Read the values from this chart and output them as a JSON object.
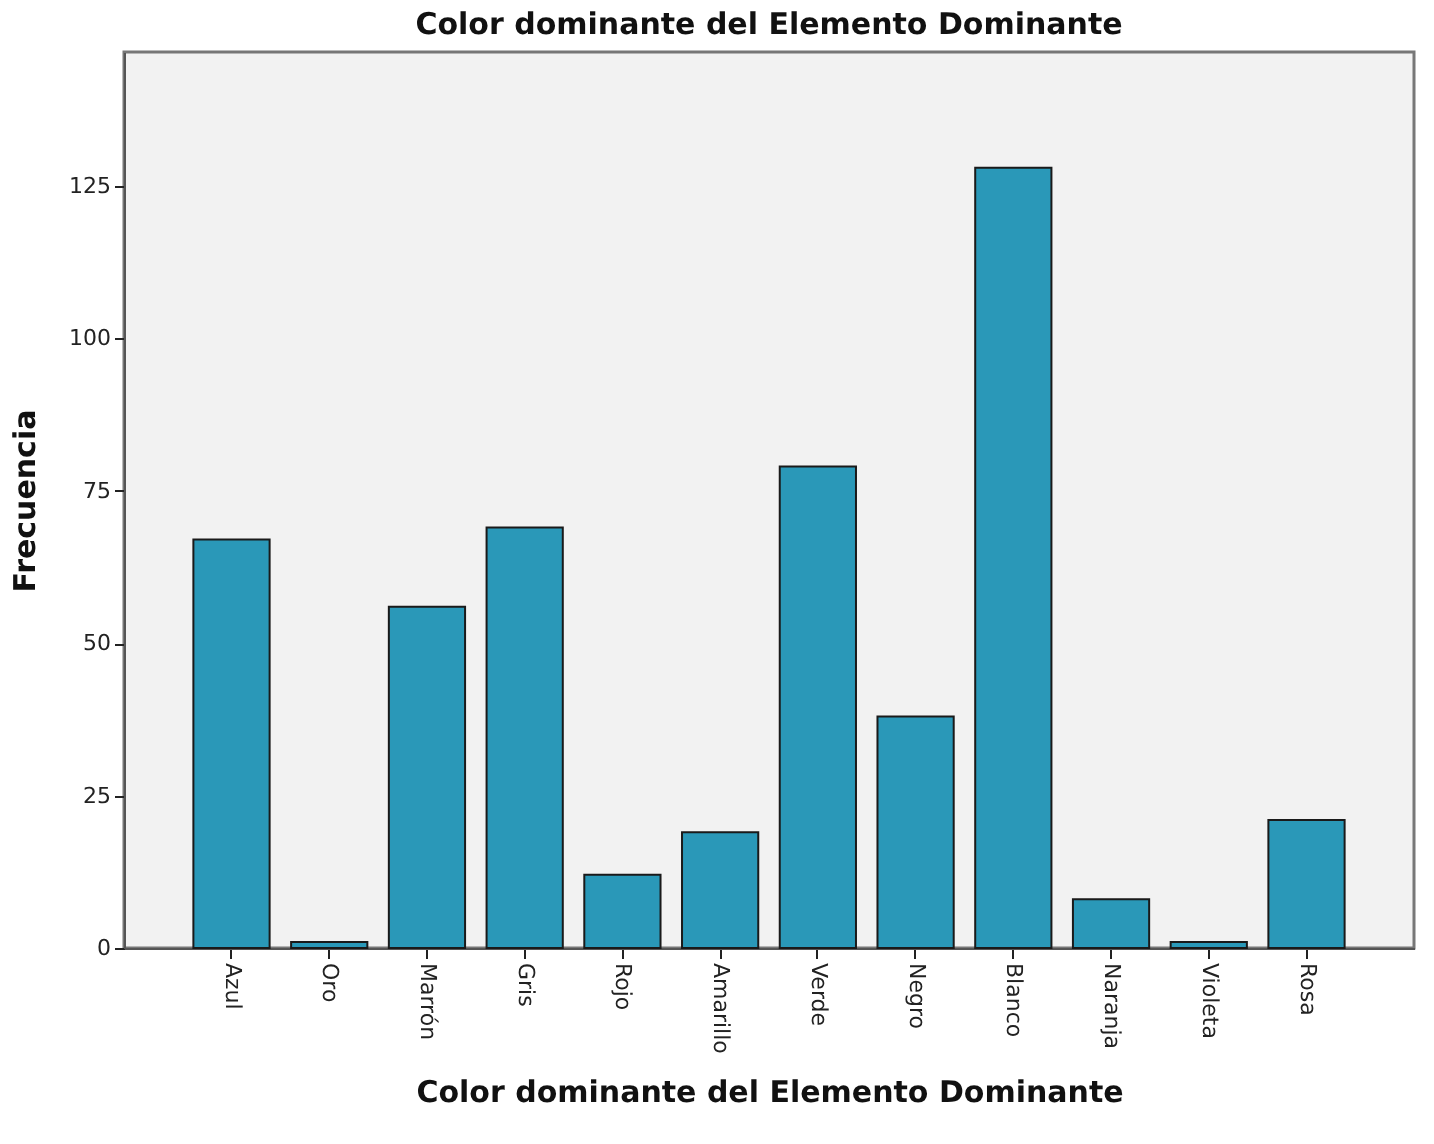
{
  "chart_data": {
    "type": "bar",
    "title": "Color dominante del Elemento Dominante",
    "xlabel": "Color dominante del Elemento Dominante",
    "ylabel": "Frecuencia",
    "categories": [
      "Azul",
      "Oro",
      "Marrón",
      "Gris",
      "Rojo",
      "Amarillo",
      "Verde",
      "Negro",
      "Blanco",
      "Naranja",
      "Violeta",
      "Rosa"
    ],
    "values": [
      67,
      1,
      56,
      69,
      12,
      19,
      79,
      38,
      128,
      8,
      1,
      21
    ],
    "color": "#2a98b8",
    "ylim": [
      0,
      147
    ],
    "yticks": [
      0,
      25,
      50,
      75,
      100,
      125
    ],
    "grid": false
  }
}
